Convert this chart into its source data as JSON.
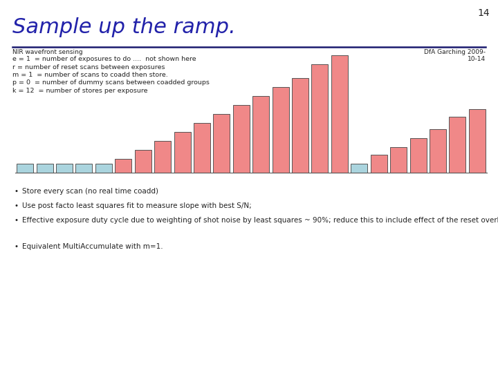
{
  "title": "Sample up the ramp.",
  "page_number": "14",
  "subtitle_left": "NIR wavefront sensing",
  "subtitle_right": "DfA Garching 2009-\n10-14",
  "info_lines": [
    "e = 1  = number of exposures to do ....  not shown here",
    "r = number of reset scans between exposures",
    "m = 1  = number of scans to coadd then store.",
    "p = 0  = number of dummy scans between coadded groups",
    "k = 12  = number of stores per exposure"
  ],
  "bullet_points": [
    "Store every scan (no real time coadd)",
    "Use post facto least squares fit to measure slope with best S/N;",
    "Effective exposure duty cycle due to weighting of shot noise by least squares ~ 90%; reduce this to include effect of the reset overhead.",
    "Equivalent MultiAccumulate with m=1."
  ],
  "bar_colors": [
    "#aad4de",
    "#aad4de",
    "#aad4de",
    "#aad4de",
    "#aad4de",
    "#f08888",
    "#f08888",
    "#f08888",
    "#f08888",
    "#f08888",
    "#f08888",
    "#f08888",
    "#f08888",
    "#f08888",
    "#f08888",
    "#f08888",
    "#f08888",
    "#aad4de",
    "#f08888",
    "#f08888",
    "#f08888",
    "#f08888",
    "#f08888",
    "#f08888"
  ],
  "bar_heights": [
    1.0,
    1.0,
    1.0,
    1.0,
    1.0,
    1.5,
    2.5,
    3.5,
    4.5,
    5.5,
    6.5,
    7.5,
    8.5,
    9.5,
    10.5,
    12.0,
    13.0,
    1.0,
    2.0,
    2.8,
    3.8,
    4.8,
    6.2,
    7.0
  ],
  "bar_edgecolor": "#555555",
  "divider_color": "#1a1a6e",
  "title_color": "#2222aa",
  "background_color": "#ffffff",
  "text_color": "#222222"
}
